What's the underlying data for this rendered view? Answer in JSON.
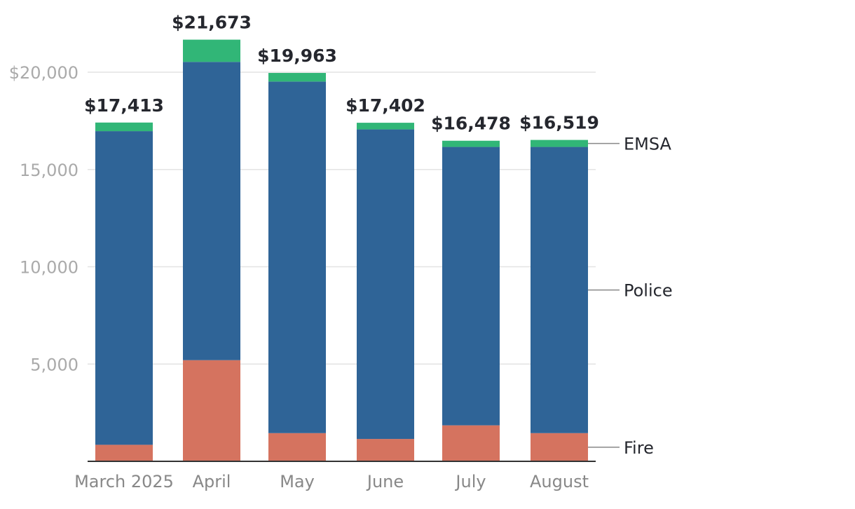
{
  "chart_data": {
    "type": "bar",
    "stacked": true,
    "title": "",
    "xlabel": "",
    "ylabel": "",
    "ylim": [
      0,
      21673
    ],
    "y_ticks": [
      {
        "value": 5000,
        "label": "5,000"
      },
      {
        "value": 10000,
        "label": "10,000"
      },
      {
        "value": 15000,
        "label": "15,000"
      },
      {
        "value": 20000,
        "label": "$20,000"
      }
    ],
    "categories": [
      "March 2025",
      "April",
      "May",
      "June",
      "July",
      "August"
    ],
    "series": [
      {
        "name": "Fire",
        "color": "#d5735f",
        "values": [
          850,
          5200,
          1450,
          1150,
          1850,
          1450
        ]
      },
      {
        "name": "Police",
        "color": "#2f6497",
        "values": [
          16120,
          15330,
          18070,
          15910,
          14310,
          14710
        ]
      },
      {
        "name": "EMSA",
        "color": "#31b677",
        "values": [
          443,
          1143,
          443,
          342,
          318,
          359
        ]
      }
    ],
    "totals": [
      "$17,413",
      "$21,673",
      "$19,963",
      "$17,402",
      "$16,478",
      "$16,519"
    ],
    "legend": {
      "placement": "right",
      "style": "direct-labels"
    }
  }
}
